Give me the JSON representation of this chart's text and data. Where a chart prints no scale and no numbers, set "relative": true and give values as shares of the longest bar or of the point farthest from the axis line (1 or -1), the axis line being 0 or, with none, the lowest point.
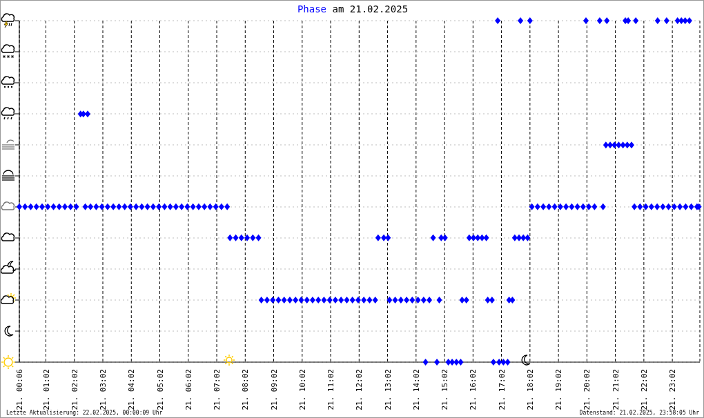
{
  "chart_data": {
    "type": "scatter",
    "title": "Phase am 21.02.2025",
    "annotations": [
      "Letzte Aktualisierung: 22.02.2025, 00:00:09 Uhr",
      "Datenstand: 21.02.2025, 23:58:05 Uhr"
    ],
    "xlim": [
      "2025-02-21T00:06",
      "2025-02-22T00:00"
    ],
    "xticks": [
      {
        "value": "2025-02-21T00:06",
        "label": "21. 00:06"
      },
      {
        "value": "2025-02-21T01:02",
        "label": "21. 01:02"
      },
      {
        "value": "2025-02-21T02:02",
        "label": "21. 02:02"
      },
      {
        "value": "2025-02-21T03:02",
        "label": "21. 03:02"
      },
      {
        "value": "2025-02-21T04:02",
        "label": "21. 04:02"
      },
      {
        "value": "2025-02-21T05:02",
        "label": "21. 05:02"
      },
      {
        "value": "2025-02-21T06:02",
        "label": "21. 06:02"
      },
      {
        "value": "2025-02-21T07:02",
        "label": "21. 07:02"
      },
      {
        "value": "2025-02-21T08:02",
        "label": "21. 08:02"
      },
      {
        "value": "2025-02-21T09:02",
        "label": "21. 09:02"
      },
      {
        "value": "2025-02-21T10:02",
        "label": "21. 10:02"
      },
      {
        "value": "2025-02-21T11:02",
        "label": "21. 11:02"
      },
      {
        "value": "2025-02-21T12:02",
        "label": "21. 12:02"
      },
      {
        "value": "2025-02-21T13:02",
        "label": "21. 13:02"
      },
      {
        "value": "2025-02-21T14:02",
        "label": "21. 14:02"
      },
      {
        "value": "2025-02-21T15:02",
        "label": "21. 15:02"
      },
      {
        "value": "2025-02-21T16:02",
        "label": "21. 16:02"
      },
      {
        "value": "2025-02-21T17:02",
        "label": "21. 17:02"
      },
      {
        "value": "2025-02-21T18:02",
        "label": "21. 18:02"
      },
      {
        "value": "2025-02-21T19:02",
        "label": "21. 19:02"
      },
      {
        "value": "2025-02-21T20:02",
        "label": "21. 20:02"
      },
      {
        "value": "2025-02-21T21:02",
        "label": "21. 21:02"
      },
      {
        "value": "2025-02-21T22:02",
        "label": "21. 22:02"
      },
      {
        "value": "2025-02-21T23:02",
        "label": "21. 23:02"
      }
    ],
    "relative": true,
    "grid": true,
    "marker": "diamond",
    "series": [
      {
        "color": "#0000ff",
        "x": [
          "2025-02-21T00:06",
          "2025-02-21T00:18",
          "2025-02-21T00:30",
          "2025-02-21T00:42",
          "2025-02-21T00:54",
          "2025-02-21T01:06",
          "2025-02-21T01:18",
          "2025-02-21T01:30",
          "2025-02-21T01:42",
          "2025-02-21T01:54",
          "2025-02-21T02:06",
          "2025-02-21T02:15",
          "2025-02-21T02:21",
          "2025-02-21T02:25",
          "2025-02-21T02:30",
          "2025-02-21T02:36",
          "2025-02-21T02:48",
          "2025-02-21T03:00",
          "2025-02-21T03:12",
          "2025-02-21T03:24",
          "2025-02-21T03:36",
          "2025-02-21T03:48",
          "2025-02-21T04:00",
          "2025-02-21T04:12",
          "2025-02-21T04:24",
          "2025-02-21T04:36",
          "2025-02-21T04:48",
          "2025-02-21T05:00",
          "2025-02-21T05:12",
          "2025-02-21T05:24",
          "2025-02-21T05:36",
          "2025-02-21T05:48",
          "2025-02-21T06:00",
          "2025-02-21T06:12",
          "2025-02-21T06:24",
          "2025-02-21T06:36",
          "2025-02-21T06:48",
          "2025-02-21T07:00",
          "2025-02-21T07:12",
          "2025-02-21T07:24",
          "2025-02-21T07:30",
          "2025-02-21T07:42",
          "2025-02-21T07:54",
          "2025-02-21T08:06",
          "2025-02-21T08:18",
          "2025-02-21T08:30",
          "2025-02-21T08:36",
          "2025-02-21T08:48",
          "2025-02-21T09:00",
          "2025-02-21T09:12",
          "2025-02-21T09:24",
          "2025-02-21T09:36",
          "2025-02-21T09:48",
          "2025-02-21T10:00",
          "2025-02-21T10:12",
          "2025-02-21T10:24",
          "2025-02-21T10:36",
          "2025-02-21T10:48",
          "2025-02-21T11:00",
          "2025-02-21T11:12",
          "2025-02-21T11:24",
          "2025-02-21T11:36",
          "2025-02-21T11:48",
          "2025-02-21T12:00",
          "2025-02-21T12:12",
          "2025-02-21T12:24",
          "2025-02-21T12:36",
          "2025-02-21T12:42",
          "2025-02-21T12:54",
          "2025-02-21T13:03",
          "2025-02-21T13:06",
          "2025-02-21T13:18",
          "2025-02-21T13:30",
          "2025-02-21T13:42",
          "2025-02-21T13:54",
          "2025-02-21T14:06",
          "2025-02-21T14:18",
          "2025-02-21T14:22",
          "2025-02-21T14:30",
          "2025-02-21T14:38",
          "2025-02-21T14:46",
          "2025-02-21T14:51",
          "2025-02-21T14:55",
          "2025-02-21T15:03",
          "2025-02-21T15:10",
          "2025-02-21T15:18",
          "2025-02-21T15:27",
          "2025-02-21T15:36",
          "2025-02-21T15:39",
          "2025-02-21T15:48",
          "2025-02-21T15:54",
          "2025-02-21T16:03",
          "2025-02-21T16:12",
          "2025-02-21T16:21",
          "2025-02-21T16:30",
          "2025-02-21T16:33",
          "2025-02-21T16:42",
          "2025-02-21T16:45",
          "2025-02-21T16:54",
          "2025-02-21T16:57",
          "2025-02-21T17:06",
          "2025-02-21T17:15",
          "2025-02-21T17:18",
          "2025-02-21T17:25",
          "2025-02-21T17:30",
          "2025-02-21T17:39",
          "2025-02-21T17:42",
          "2025-02-21T17:48",
          "2025-02-21T17:57",
          "2025-02-21T18:02",
          "2025-02-21T18:06",
          "2025-02-21T18:18",
          "2025-02-21T18:30",
          "2025-02-21T18:42",
          "2025-02-21T18:54",
          "2025-02-21T19:06",
          "2025-02-21T19:18",
          "2025-02-21T19:30",
          "2025-02-21T19:42",
          "2025-02-21T19:54",
          "2025-02-21T20:00",
          "2025-02-21T20:06",
          "2025-02-21T20:18",
          "2025-02-21T20:29",
          "2025-02-21T20:36",
          "2025-02-21T20:42",
          "2025-02-21T20:44",
          "2025-02-21T20:51",
          "2025-02-21T21:00",
          "2025-02-21T21:09",
          "2025-02-21T21:18",
          "2025-02-21T21:23",
          "2025-02-21T21:27",
          "2025-02-21T21:29",
          "2025-02-21T21:36",
          "2025-02-21T21:42",
          "2025-02-21T21:45",
          "2025-02-21T21:54",
          "2025-02-21T22:06",
          "2025-02-21T22:18",
          "2025-02-21T22:30",
          "2025-02-21T22:31",
          "2025-02-21T22:42",
          "2025-02-21T22:50",
          "2025-02-21T22:54",
          "2025-02-21T23:06",
          "2025-02-21T23:13",
          "2025-02-21T23:18",
          "2025-02-21T23:21",
          "2025-02-21T23:29",
          "2025-02-21T23:30",
          "2025-02-21T23:38",
          "2025-02-21T23:42",
          "2025-02-21T23:54",
          "2025-02-21T23:58"
        ],
        "values": [
          0.455,
          0.455,
          0.455,
          0.455,
          0.455,
          0.455,
          0.455,
          0.455,
          0.455,
          0.455,
          0.455,
          0.727,
          0.727,
          0.455,
          0.727,
          0.455,
          0.455,
          0.455,
          0.455,
          0.455,
          0.455,
          0.455,
          0.455,
          0.455,
          0.455,
          0.455,
          0.455,
          0.455,
          0.455,
          0.455,
          0.455,
          0.455,
          0.455,
          0.455,
          0.455,
          0.455,
          0.455,
          0.455,
          0.455,
          0.455,
          0.364,
          0.364,
          0.364,
          0.364,
          0.364,
          0.364,
          0.182,
          0.182,
          0.182,
          0.182,
          0.182,
          0.182,
          0.182,
          0.182,
          0.182,
          0.182,
          0.182,
          0.182,
          0.182,
          0.182,
          0.182,
          0.182,
          0.182,
          0.182,
          0.182,
          0.182,
          0.182,
          0.364,
          0.364,
          0.364,
          0.182,
          0.182,
          0.182,
          0.182,
          0.182,
          0.182,
          0.182,
          0,
          0.182,
          0.364,
          0,
          0.182,
          0.364,
          0.364,
          0,
          0,
          0,
          0,
          0.182,
          0.182,
          0.364,
          0.364,
          0.364,
          0.364,
          0.364,
          0.182,
          0.182,
          0,
          1,
          0,
          0,
          0,
          0.182,
          0.182,
          0.364,
          0.364,
          1,
          0.364,
          0.364,
          1,
          0.455,
          0.455,
          0.455,
          0.455,
          0.455,
          0.455,
          0.455,
          0.455,
          0.455,
          0.455,
          1,
          0.455,
          0.455,
          1,
          0.455,
          0.636,
          1,
          0.636,
          0.636,
          0.636,
          0.636,
          1,
          0.636,
          1,
          0.636,
          0.455,
          1,
          0.455,
          0.455,
          0.455,
          0.455,
          1,
          0.455,
          1,
          0.455,
          0.455,
          1,
          0.455,
          1,
          1,
          0.455,
          1,
          0.455,
          0.455,
          0.455
        ]
      }
    ]
  }
}
